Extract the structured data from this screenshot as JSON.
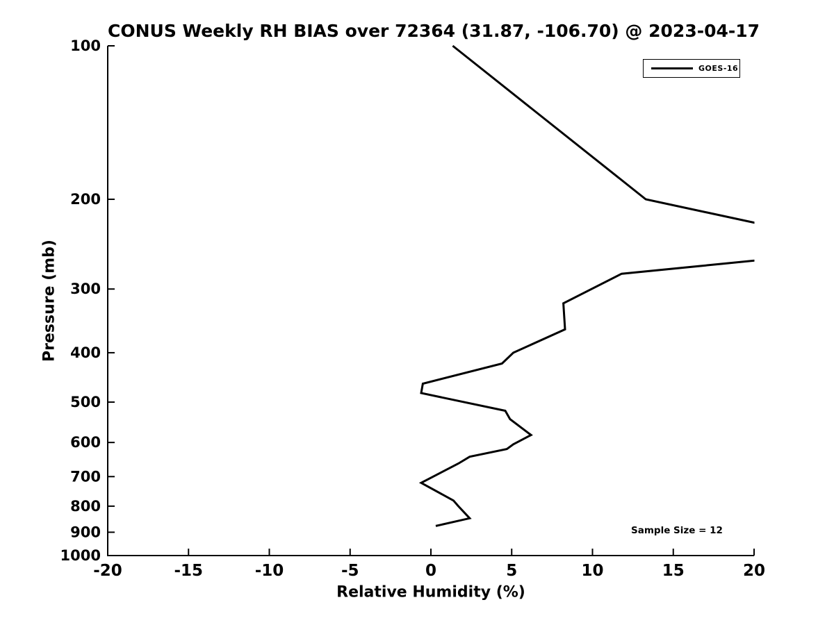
{
  "figure": {
    "title": "CONUS Weekly RH BIAS over 72364 (31.87, -106.70) @ 2023-04-17",
    "xlabel": "Relative Humidity (%)",
    "ylabel": "Pressure (mb)",
    "annotation": "Sample Size = 12",
    "legend": {
      "entries": [
        {
          "label": "GOES-16",
          "color": "#000000"
        }
      ],
      "position": "upper-right"
    },
    "background_color": "#ffffff",
    "text_color": "#000000"
  },
  "chart_data": {
    "type": "line",
    "title": "CONUS Weekly RH BIAS over 72364 (31.87, -106.70) @ 2023-04-17",
    "xlabel": "Relative Humidity (%)",
    "ylabel": "Pressure (mb)",
    "xlim": [
      -20,
      20
    ],
    "ylim": [
      1000,
      100
    ],
    "yscale": "log",
    "y_inverted": true,
    "grid": false,
    "xticks": [
      -20,
      -15,
      -10,
      -5,
      0,
      5,
      10,
      15,
      20
    ],
    "yticks": [
      100,
      200,
      300,
      400,
      500,
      600,
      700,
      800,
      900,
      1000
    ],
    "legend_position": "upper-right",
    "annotation": "Sample Size = 12",
    "series": [
      {
        "name": "GOES-16",
        "color": "#000000",
        "line_width": 3,
        "note": "x values are RH bias (%), y values are pressure (mb); the 250 mb point lies beyond the +20 axis limit and is clipped at the right edge",
        "points": [
          {
            "pressure": 100,
            "rh_bias": 1.35
          },
          {
            "pressure": 200,
            "rh_bias": 13.3
          },
          {
            "pressure": 250,
            "rh_bias": 27.5
          },
          {
            "pressure": 280,
            "rh_bias": 11.8
          },
          {
            "pressure": 320,
            "rh_bias": 8.2
          },
          {
            "pressure": 360,
            "rh_bias": 8.3
          },
          {
            "pressure": 400,
            "rh_bias": 5.1
          },
          {
            "pressure": 420,
            "rh_bias": 4.4
          },
          {
            "pressure": 460,
            "rh_bias": -0.5
          },
          {
            "pressure": 480,
            "rh_bias": -0.6
          },
          {
            "pressure": 520,
            "rh_bias": 4.6
          },
          {
            "pressure": 540,
            "rh_bias": 4.9
          },
          {
            "pressure": 580,
            "rh_bias": 6.2
          },
          {
            "pressure": 605,
            "rh_bias": 5.1
          },
          {
            "pressure": 618,
            "rh_bias": 4.7
          },
          {
            "pressure": 640,
            "rh_bias": 2.4
          },
          {
            "pressure": 660,
            "rh_bias": 1.7
          },
          {
            "pressure": 720,
            "rh_bias": -0.6
          },
          {
            "pressure": 780,
            "rh_bias": 1.4
          },
          {
            "pressure": 800,
            "rh_bias": 1.7
          },
          {
            "pressure": 845,
            "rh_bias": 2.4
          },
          {
            "pressure": 875,
            "rh_bias": 0.3
          }
        ]
      }
    ]
  }
}
